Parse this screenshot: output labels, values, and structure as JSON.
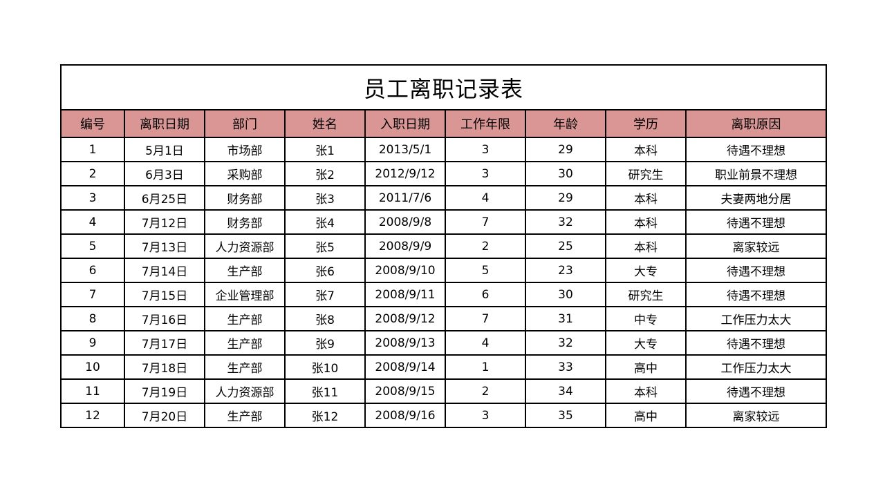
{
  "title": "员工离职记录表",
  "header_color": "#d99694",
  "columns": [
    "编号",
    "离职日期",
    "部门",
    "姓名",
    "入职日期",
    "工作年限",
    "年龄",
    "学历",
    "离职原因"
  ],
  "rows": [
    [
      "1",
      "5月1日",
      "市场部",
      "张1",
      "2013/5/1",
      "3",
      "29",
      "本科",
      "待遇不理想"
    ],
    [
      "2",
      "6月3日",
      "采购部",
      "张2",
      "2012/9/12",
      "3",
      "30",
      "研究生",
      "职业前景不理想"
    ],
    [
      "3",
      "6月25日",
      "财务部",
      "张3",
      "2011/7/6",
      "4",
      "29",
      "本科",
      "夫妻两地分居"
    ],
    [
      "4",
      "7月12日",
      "财务部",
      "张4",
      "2008/9/8",
      "7",
      "32",
      "本科",
      "待遇不理想"
    ],
    [
      "5",
      "7月13日",
      "人力资源部",
      "张5",
      "2008/9/9",
      "2",
      "25",
      "本科",
      "离家较远"
    ],
    [
      "6",
      "7月14日",
      "生产部",
      "张6",
      "2008/9/10",
      "5",
      "23",
      "大专",
      "待遇不理想"
    ],
    [
      "7",
      "7月15日",
      "企业管理部",
      "张7",
      "2008/9/11",
      "6",
      "30",
      "研究生",
      "待遇不理想"
    ],
    [
      "8",
      "7月16日",
      "生产部",
      "张8",
      "2008/9/12",
      "7",
      "31",
      "中专",
      "工作压力太大"
    ],
    [
      "9",
      "7月17日",
      "生产部",
      "张9",
      "2008/9/13",
      "4",
      "32",
      "大专",
      "待遇不理想"
    ],
    [
      "10",
      "7月18日",
      "生产部",
      "张10",
      "2008/9/14",
      "1",
      "33",
      "高中",
      "工作压力太大"
    ],
    [
      "11",
      "7月19日",
      "人力资源部",
      "张11",
      "2008/9/15",
      "2",
      "34",
      "本科",
      "待遇不理想"
    ],
    [
      "12",
      "7月20日",
      "生产部",
      "张12",
      "2008/9/16",
      "3",
      "35",
      "高中",
      "离家较远"
    ]
  ]
}
